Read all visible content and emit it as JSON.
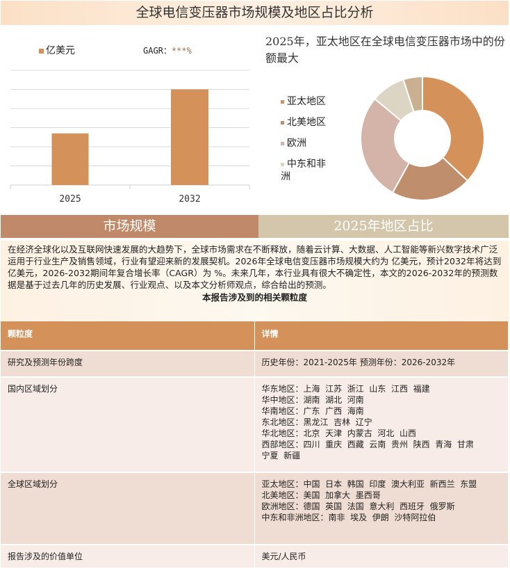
{
  "title": "全球电信变压器市场规模及地区占比分析",
  "bar_legend": "亿美元",
  "gagr_label": "GAGR：",
  "gagr_value": "***%",
  "pie_title": "2025年，亚太地区在全球电信变压器市场中的份额最大",
  "sections": {
    "left": "市场规模",
    "right": "2025年地区占比"
  },
  "paragraph": "在经济全球化以及互联网快速发展的大趋势下，全球市场需求在不断释放，随着云计算、大数据、人工智能等新兴数字技术广泛运用于行业生产及销售领域，行业有望迎来新的发展契机。2026年全球电信变压器市场规模大约为 亿美元，预计2032年将达到 亿美元，2026-2032期间年复合增长率（CAGR）为 %。未来几年，本行业具有很大不确定性，本文的2026-2032年的预测数据是基于过去几年的历史发展、行业观点、以及本文分析师观点，综合给出的预测。",
  "table_title": "本报告涉及到的相关颗粒度",
  "table": {
    "headers": [
      "颗粒度",
      "详情"
    ],
    "rows": [
      {
        "label": "研究及预测年份跨度",
        "lines": [
          "历史年份：2021-2025年 预测年份：2026-2032年"
        ]
      },
      {
        "label": "国内区域划分",
        "lines": [
          "华东地区：上海  江苏  浙江  山东  江西  福建",
          "华中地区：湖南  湖北  河南",
          "华南地区：广东  广西  海南",
          "东北地区：黑龙江  吉林  辽宁",
          "华北地区：北京  天津  内蒙古  河北  山西",
          "西部地区：四川  重庆  西藏  云南  贵州  陕西  青海  甘肃",
          "宁夏  新疆"
        ]
      },
      {
        "label": "全球区域划分",
        "lines": [
          "亚太地区：中国  日本  韩国  印度  澳大利亚  新西兰  东盟",
          "北美地区：美国  加拿大  墨西哥",
          "欧洲地区：德国  英国  法国  意大利  西班牙  俄罗斯",
          "中东和非洲地区：南非  埃及  伊朗  沙特阿拉伯"
        ]
      },
      {
        "label": "报告涉及的价值单位",
        "lines": [
          "美元/人民币"
        ]
      }
    ]
  },
  "chart_data": [
    {
      "type": "bar",
      "categories": [
        "2025",
        "2032"
      ],
      "values": [
        2.7,
        5.0
      ],
      "ylim": [
        0,
        6
      ],
      "grid": true,
      "series_name": "亿美元",
      "color": "#d4915a",
      "legend": "top-left"
    },
    {
      "type": "pie",
      "donut": true,
      "labels": [
        "亚太地区",
        "北美地区",
        "欧洲",
        "中东和非洲",
        ""
      ],
      "values": [
        37,
        21,
        28,
        9,
        5
      ],
      "colors": [
        "#d4915a",
        "#bf8f6d",
        "#d4b4a8",
        "#ddd5c3",
        "#c8b090"
      ],
      "legend": "left"
    }
  ]
}
